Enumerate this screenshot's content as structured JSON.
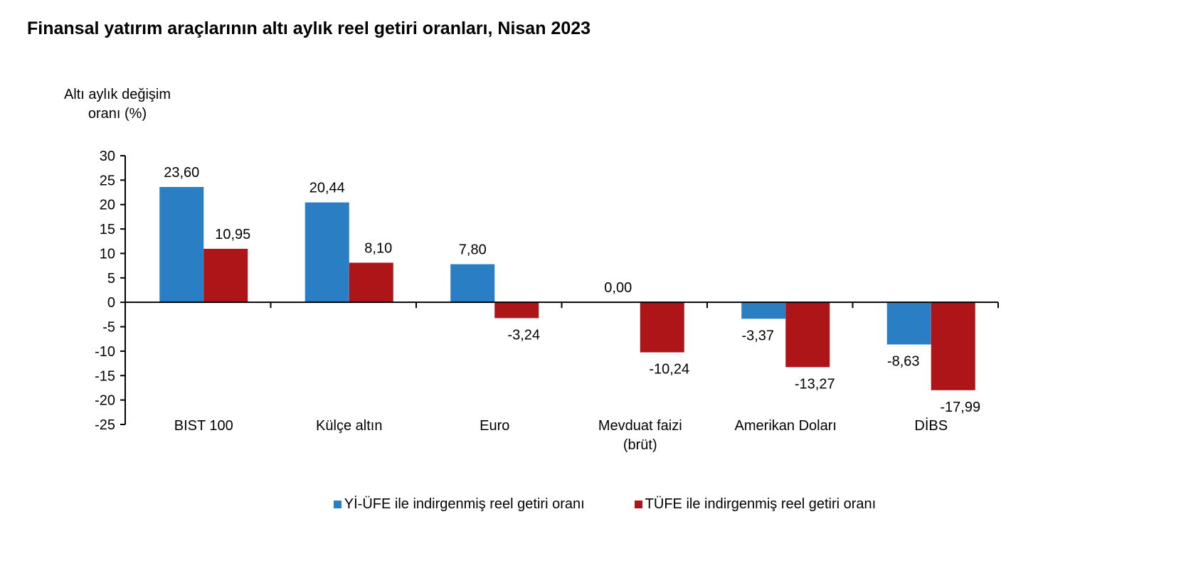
{
  "chart_data": {
    "type": "bar",
    "title": "Finansal yatırım araçlarının altı aylık reel getiri oranları, Nisan 2023",
    "ylabel": "Altı aylık değişim oranı (%)",
    "xlabel": "",
    "ylim": [
      -25,
      30
    ],
    "yticks": [
      30,
      25,
      20,
      15,
      10,
      5,
      0,
      -5,
      -10,
      -15,
      -20,
      -25
    ],
    "categories": [
      [
        "BIST 100"
      ],
      [
        "Külçe altın"
      ],
      [
        "Euro"
      ],
      [
        "Mevduat faizi",
        "(brüt)"
      ],
      [
        "Amerikan Doları"
      ],
      [
        "DİBS"
      ]
    ],
    "series": [
      {
        "name": "Yİ-ÜFE ile indirgenmiş reel getiri oranı",
        "color": "#2A7FC4",
        "values": [
          23.6,
          20.44,
          7.8,
          0.0,
          -3.37,
          -8.63
        ],
        "labels": [
          "23,60",
          "20,44",
          "7,80",
          "0,00",
          "-3,37",
          "-8,63"
        ]
      },
      {
        "name": "TÜFE ile indirgenmiş reel getiri oranı",
        "color": "#AE1518",
        "values": [
          10.95,
          8.1,
          -3.24,
          -10.24,
          -13.27,
          -17.99
        ],
        "labels": [
          "10,95",
          "8,10",
          "-3,24",
          "-10,24",
          "-13,27",
          "-17,99"
        ]
      }
    ],
    "grid": false,
    "legend": "bottom"
  }
}
